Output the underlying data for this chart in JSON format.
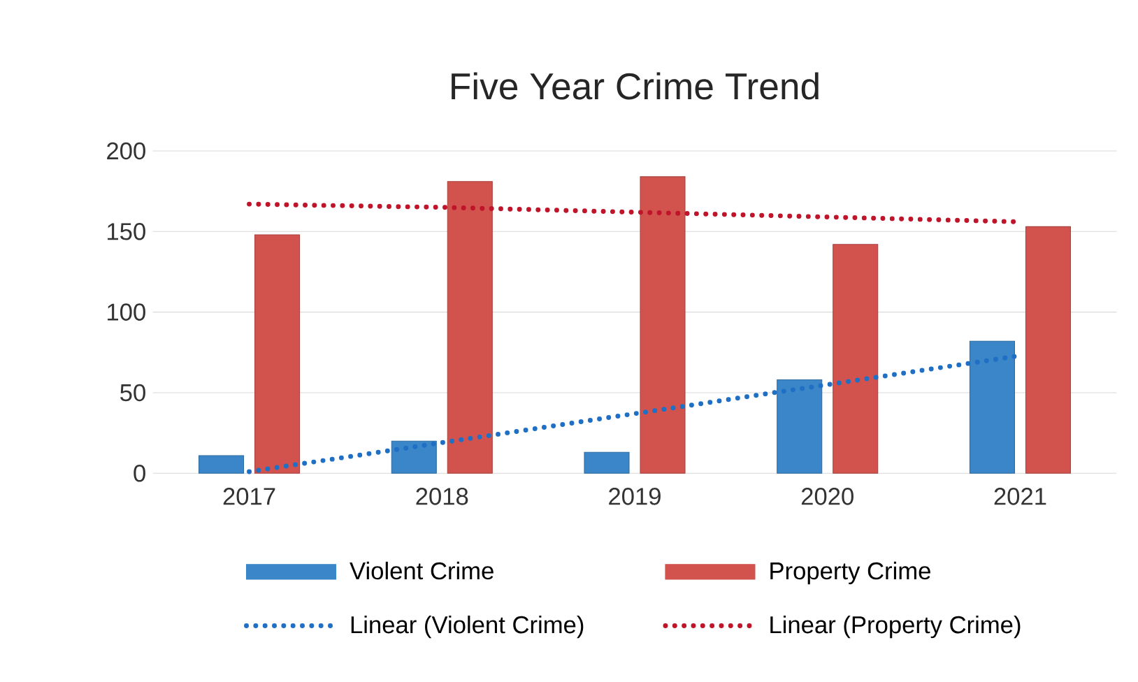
{
  "chart_data": {
    "type": "bar",
    "title": "Five Year Crime Trend",
    "categories": [
      "2017",
      "2018",
      "2019",
      "2020",
      "2021"
    ],
    "series": [
      {
        "name": "Violent Crime",
        "color": "#3a86c8",
        "values": [
          11,
          20,
          13,
          58,
          82
        ]
      },
      {
        "name": "Property Crime",
        "color": "#d2534e",
        "values": [
          148,
          181,
          184,
          142,
          153
        ]
      },
      {
        "name": "Linear (Violent Crime)",
        "type": "line",
        "line_style": "dotted",
        "color": "#1f6fc5",
        "values": [
          1,
          19,
          37,
          55,
          73
        ]
      },
      {
        "name": "Linear (Property Crime)",
        "type": "line",
        "line_style": "dotted",
        "color": "#c0142a",
        "values": [
          167,
          165,
          162,
          159,
          156
        ]
      }
    ],
    "ylim": [
      0,
      200
    ],
    "yticks": [
      0,
      50,
      100,
      150,
      200
    ],
    "grid": "y",
    "legend": "bottom"
  }
}
